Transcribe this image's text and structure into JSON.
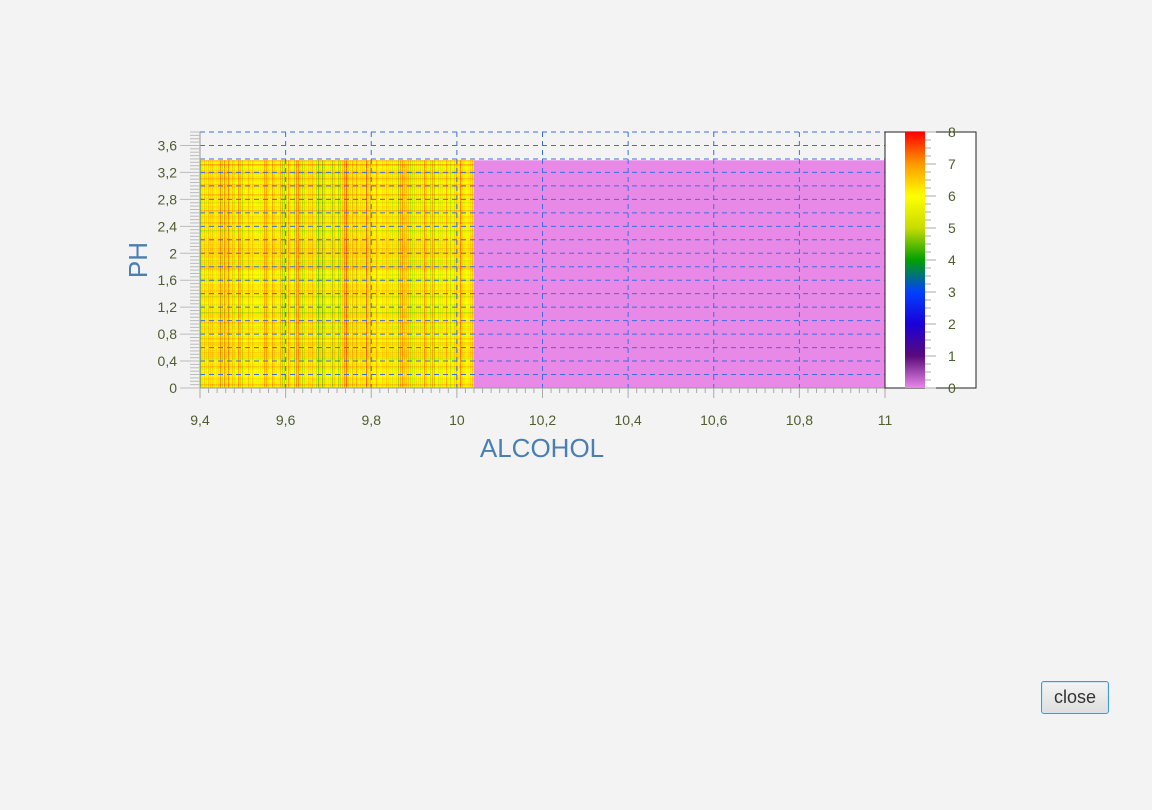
{
  "chart_data": {
    "type": "heatmap",
    "xlabel": "ALCOHOL",
    "ylabel": "PH",
    "xlim": [
      9.4,
      11
    ],
    "ylim": [
      0,
      3.8
    ],
    "x_ticks": [
      "9,4",
      "9,6",
      "9,8",
      "10",
      "10,2",
      "10,4",
      "10,6",
      "10,8",
      "11"
    ],
    "x_tick_values": [
      9.4,
      9.6,
      9.8,
      10,
      10.2,
      10.4,
      10.6,
      10.8,
      11
    ],
    "y_ticks": [
      "0",
      "0,4",
      "0,8",
      "1,2",
      "1,6",
      "2",
      "2,4",
      "2,8",
      "3,2",
      "3,6"
    ],
    "y_tick_values": [
      0,
      0.4,
      0.8,
      1.2,
      1.6,
      2.0,
      2.4,
      2.8,
      3.2,
      3.6
    ],
    "colorbar": {
      "min": 0,
      "max": 8,
      "ticks": [
        "0",
        "1",
        "2",
        "3",
        "4",
        "5",
        "6",
        "7",
        "8"
      ],
      "colors": [
        "#e889e8",
        "#5a0a7a",
        "#1a00d8",
        "#0040ff",
        "#00a000",
        "#c8dc00",
        "#ffff00",
        "#ff9a00",
        "#ff0000"
      ]
    },
    "regions": [
      {
        "x_range": [
          9.4,
          10.04
        ],
        "y_range": [
          0,
          3.38
        ],
        "value_range": [
          4.5,
          7.5
        ],
        "typical_value": 6
      },
      {
        "x_range": [
          10.04,
          11
        ],
        "y_range": [
          0,
          3.38
        ],
        "value": 0
      }
    ],
    "grid": true
  },
  "button": {
    "close_label": "close"
  }
}
